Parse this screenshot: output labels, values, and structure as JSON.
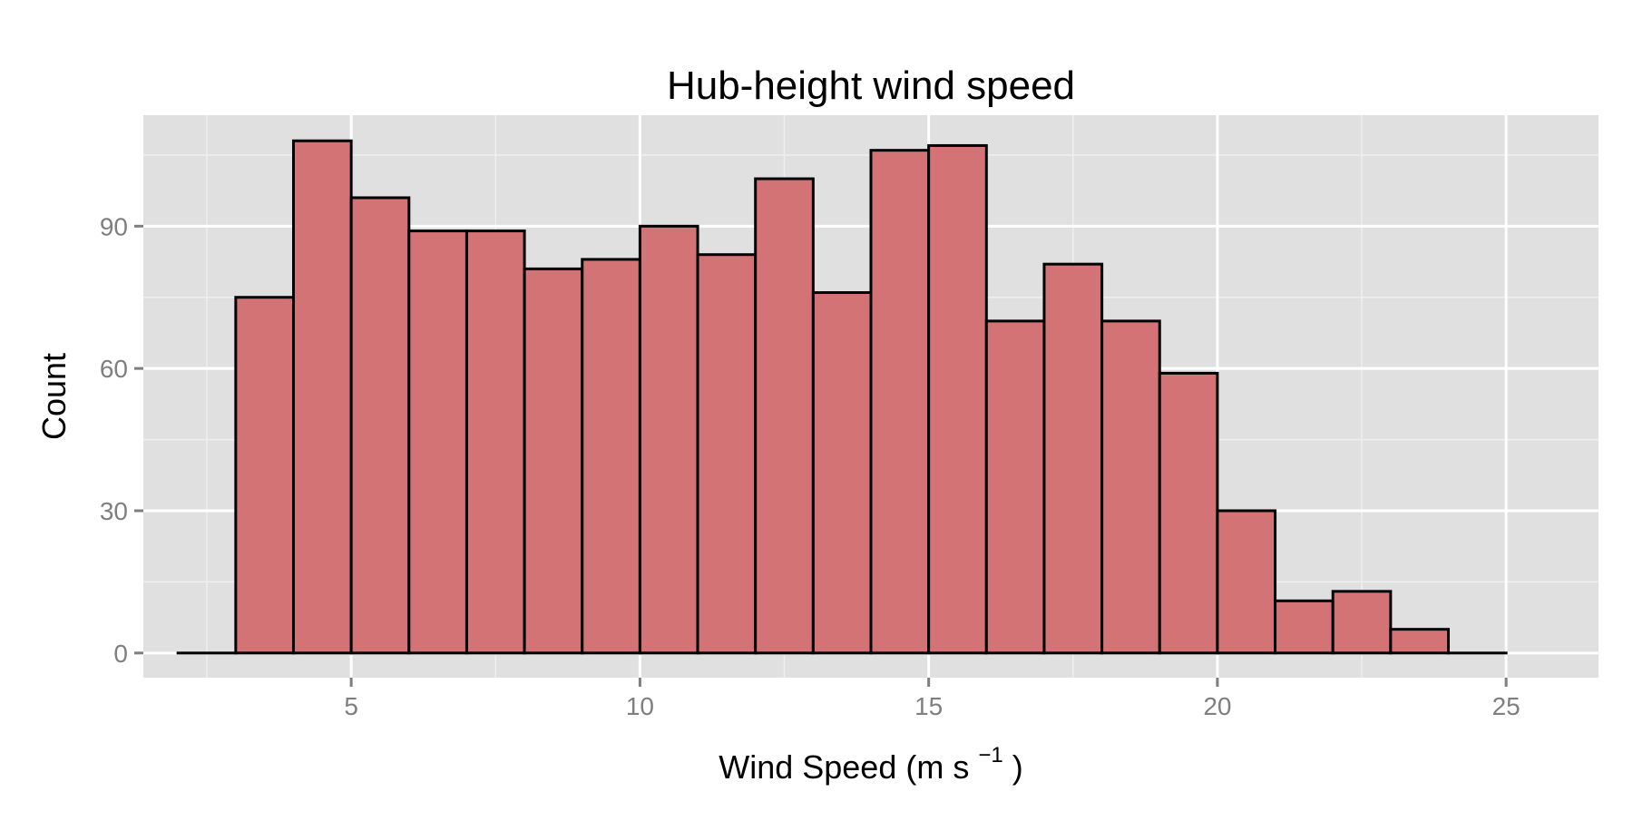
{
  "chart_data": {
    "type": "bar",
    "title": "Hub-height wind speed",
    "xlabel": "Wind Speed (m s",
    "xlabel_superscript": "−1",
    "xlabel_suffix": ")",
    "ylabel": "Count",
    "xlim": [
      1.4,
      26.6
    ],
    "ylim": [
      -5.2,
      113.4
    ],
    "x_ticks": [
      5,
      10,
      15,
      20,
      25
    ],
    "x_tick_labels": [
      "5",
      "10",
      "15",
      "20",
      "25"
    ],
    "x_minor_ticks": [
      2.5,
      7.5,
      12.5,
      17.5,
      22.5
    ],
    "y_ticks": [
      0,
      30,
      60,
      90
    ],
    "y_tick_labels": [
      "0",
      "30",
      "60",
      "90"
    ],
    "y_minor_ticks": [
      15,
      45,
      75,
      105
    ],
    "bin_width": 1,
    "bin_edges": [
      2,
      3,
      4,
      5,
      6,
      7,
      8,
      9,
      10,
      11,
      12,
      13,
      14,
      15,
      16,
      17,
      18,
      19,
      20,
      21,
      22,
      23,
      24,
      25
    ],
    "values": [
      0,
      75,
      108,
      96,
      89,
      89,
      81,
      83,
      90,
      84,
      100,
      76,
      106,
      107,
      70,
      82,
      70,
      59,
      30,
      11,
      13,
      5,
      0
    ],
    "grid": true,
    "colors": {
      "panel": "#e0e0e0",
      "grid_major": "#ffffff",
      "grid_minor": "#efefef",
      "bar_fill": "#d47375",
      "bar_outline": "#000000",
      "tick_color": "#7f7f7f"
    }
  }
}
